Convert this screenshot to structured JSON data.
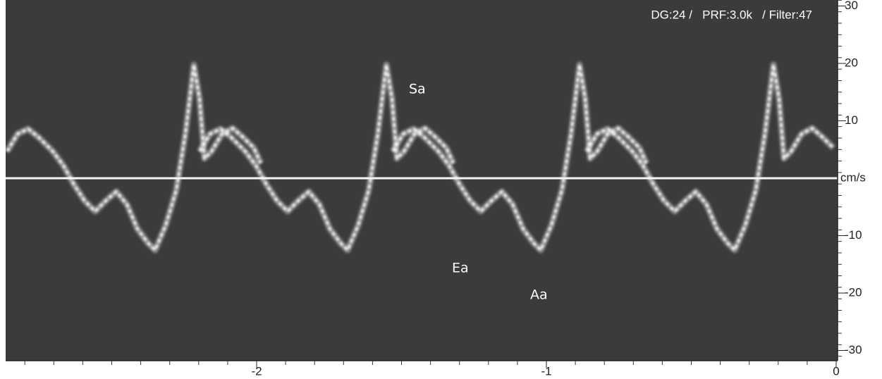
{
  "header": {
    "settings": "DG:24 /   PRF:3.0k   / Filter:47"
  },
  "y_axis": {
    "unit": "cm/s",
    "ticks": [
      30,
      20,
      10,
      -10,
      -20,
      -30
    ]
  },
  "x_axis": {
    "ticks": [
      -2,
      -1,
      0
    ]
  },
  "labels": [
    {
      "text": "Sa"
    },
    {
      "text": "Ea"
    },
    {
      "text": "Aa"
    }
  ]
}
